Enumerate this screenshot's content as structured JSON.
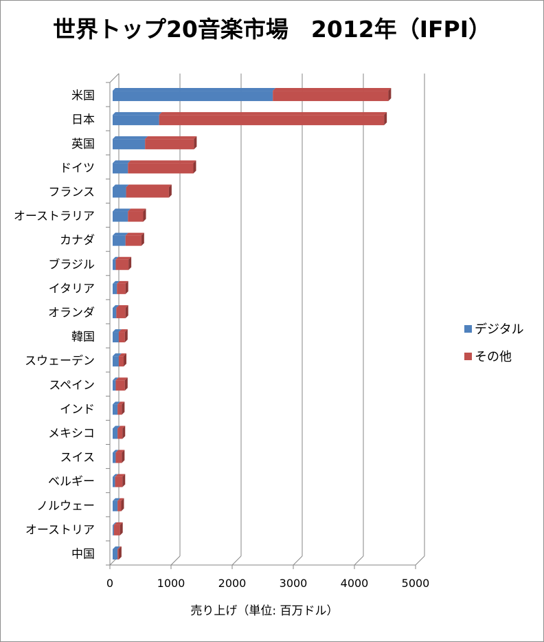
{
  "chart_data": {
    "type": "bar",
    "orientation": "horizontal",
    "stacked": true,
    "title": "世界トップ20音楽市場　2012年（IFPI）",
    "xlabel": "売り上げ（単位: 百万ドル）",
    "ylabel": "",
    "xlim": [
      0,
      5000
    ],
    "xticks": [
      "0",
      "1000",
      "2000",
      "3000",
      "4000",
      "5000"
    ],
    "grid": true,
    "legend_position": "right",
    "categories": [
      "米国",
      "日本",
      "英国",
      "ドイツ",
      "フランス",
      "オーストラリア",
      "カナダ",
      "ブラジル",
      "イタリア",
      "オランダ",
      "韓国",
      "スウェーデン",
      "スペイン",
      "インド",
      "メキシコ",
      "スイス",
      "ベルギー",
      "ノルウェー",
      "オーストリア",
      "中国"
    ],
    "series": [
      {
        "name": "デジタル",
        "color": "#4f81bd",
        "side": "#385d8a",
        "values": [
          2620,
          760,
          530,
          250,
          220,
          250,
          210,
          50,
          70,
          60,
          100,
          100,
          50,
          80,
          80,
          50,
          40,
          80,
          20,
          80
        ]
      },
      {
        "name": "その他",
        "color": "#c0504d",
        "side": "#8c3836",
        "values": [
          1890,
          3680,
          800,
          1070,
          700,
          250,
          260,
          210,
          140,
          150,
          100,
          80,
          150,
          70,
          80,
          100,
          120,
          60,
          100,
          20
        ]
      }
    ]
  }
}
